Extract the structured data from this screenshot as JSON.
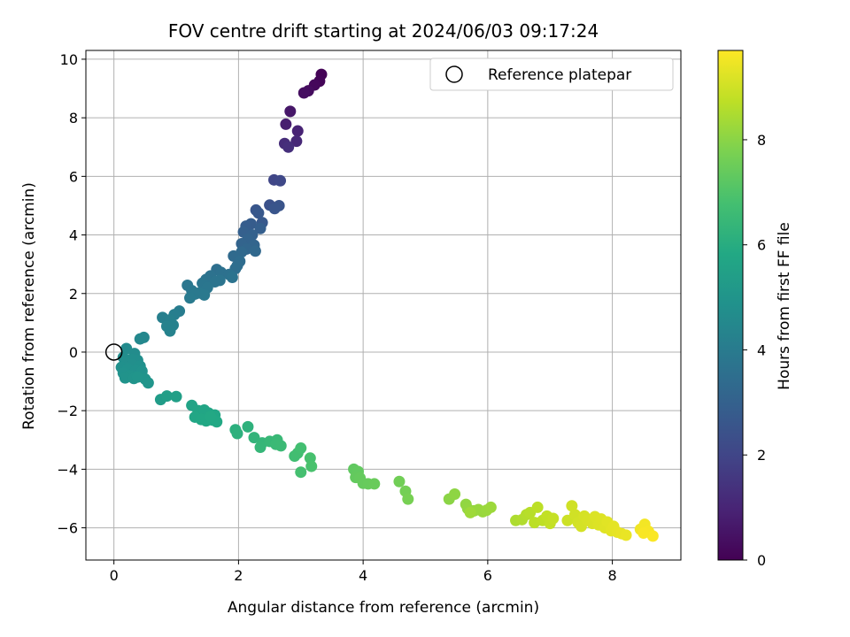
{
  "chart_data": {
    "type": "scatter",
    "title": "FOV centre drift starting at 2024/06/03 09:17:24",
    "xlabel": "Angular distance from reference (arcmin)",
    "ylabel": "Rotation from reference (arcmin)",
    "xlim": [
      -0.45,
      9.1
    ],
    "ylim": [
      -7.1,
      10.3
    ],
    "xticks": [
      0,
      2,
      4,
      6,
      8
    ],
    "yticks": [
      -6,
      -4,
      -2,
      0,
      2,
      4,
      6,
      8,
      10
    ],
    "grid": true,
    "legend": {
      "placement": "top-right",
      "entries": [
        {
          "label": "Reference platepar",
          "marker": "open-circle"
        }
      ]
    },
    "reference_point": {
      "x": 0,
      "y": 0
    },
    "colorbar": {
      "label": "Hours from first FF file",
      "range": [
        0,
        9.7
      ],
      "ticks": [
        0,
        2,
        4,
        6,
        8
      ],
      "colormap": "viridis"
    },
    "series": [
      {
        "values": [
          {
            "x": 3.33,
            "y": 9.48,
            "c": 0.05
          },
          {
            "x": 3.3,
            "y": 9.25,
            "c": 0.12
          },
          {
            "x": 3.22,
            "y": 9.12,
            "c": 0.2
          },
          {
            "x": 3.12,
            "y": 8.92,
            "c": 0.3
          },
          {
            "x": 3.05,
            "y": 8.85,
            "c": 0.35
          },
          {
            "x": 2.83,
            "y": 8.22,
            "c": 0.6
          },
          {
            "x": 2.76,
            "y": 7.78,
            "c": 0.8
          },
          {
            "x": 2.95,
            "y": 7.55,
            "c": 0.95
          },
          {
            "x": 2.93,
            "y": 7.2,
            "c": 1.1
          },
          {
            "x": 2.74,
            "y": 7.12,
            "c": 1.2
          },
          {
            "x": 2.8,
            "y": 7.0,
            "c": 1.3
          },
          {
            "x": 2.57,
            "y": 5.88,
            "c": 2.0
          },
          {
            "x": 2.67,
            "y": 5.85,
            "c": 2.1
          },
          {
            "x": 2.5,
            "y": 5.02,
            "c": 2.4
          },
          {
            "x": 2.65,
            "y": 5.0,
            "c": 2.5
          },
          {
            "x": 2.58,
            "y": 4.9,
            "c": 2.55
          },
          {
            "x": 2.28,
            "y": 4.85,
            "c": 2.6
          },
          {
            "x": 2.32,
            "y": 4.75,
            "c": 2.65
          },
          {
            "x": 2.38,
            "y": 4.42,
            "c": 2.7
          },
          {
            "x": 2.2,
            "y": 4.38,
            "c": 2.8
          },
          {
            "x": 2.12,
            "y": 4.3,
            "c": 2.85
          },
          {
            "x": 2.35,
            "y": 4.22,
            "c": 2.9
          },
          {
            "x": 2.08,
            "y": 4.1,
            "c": 2.95
          },
          {
            "x": 2.22,
            "y": 4.0,
            "c": 3.0
          },
          {
            "x": 2.15,
            "y": 3.85,
            "c": 3.05
          },
          {
            "x": 2.05,
            "y": 3.7,
            "c": 3.1
          },
          {
            "x": 2.25,
            "y": 3.65,
            "c": 3.15
          },
          {
            "x": 2.13,
            "y": 3.52,
            "c": 3.2
          },
          {
            "x": 2.27,
            "y": 3.45,
            "c": 3.25
          },
          {
            "x": 2.05,
            "y": 3.42,
            "c": 3.3
          },
          {
            "x": 1.92,
            "y": 3.28,
            "c": 3.35
          },
          {
            "x": 2.02,
            "y": 3.1,
            "c": 3.4
          },
          {
            "x": 1.98,
            "y": 2.95,
            "c": 3.45
          },
          {
            "x": 1.95,
            "y": 2.85,
            "c": 3.5
          },
          {
            "x": 1.65,
            "y": 2.82,
            "c": 3.55
          },
          {
            "x": 1.72,
            "y": 2.72,
            "c": 3.6
          },
          {
            "x": 1.85,
            "y": 2.65,
            "c": 3.62
          },
          {
            "x": 1.55,
            "y": 2.6,
            "c": 3.65
          },
          {
            "x": 1.9,
            "y": 2.55,
            "c": 3.68
          },
          {
            "x": 1.48,
            "y": 2.48,
            "c": 3.7
          },
          {
            "x": 1.7,
            "y": 2.45,
            "c": 3.72
          },
          {
            "x": 1.62,
            "y": 2.4,
            "c": 3.74
          },
          {
            "x": 1.42,
            "y": 2.35,
            "c": 3.76
          },
          {
            "x": 1.18,
            "y": 2.28,
            "c": 3.8
          },
          {
            "x": 1.5,
            "y": 2.2,
            "c": 3.82
          },
          {
            "x": 1.25,
            "y": 2.1,
            "c": 3.85
          },
          {
            "x": 1.37,
            "y": 2.02,
            "c": 3.88
          },
          {
            "x": 1.3,
            "y": 1.98,
            "c": 3.9
          },
          {
            "x": 1.45,
            "y": 1.95,
            "c": 3.92
          },
          {
            "x": 1.22,
            "y": 1.85,
            "c": 3.95
          },
          {
            "x": 1.05,
            "y": 1.4,
            "c": 4.05
          },
          {
            "x": 0.97,
            "y": 1.28,
            "c": 4.1
          },
          {
            "x": 0.78,
            "y": 1.18,
            "c": 4.15
          },
          {
            "x": 0.9,
            "y": 1.1,
            "c": 4.18
          },
          {
            "x": 0.95,
            "y": 0.92,
            "c": 4.22
          },
          {
            "x": 0.85,
            "y": 0.88,
            "c": 4.25
          },
          {
            "x": 0.9,
            "y": 0.72,
            "c": 4.28
          },
          {
            "x": 0.48,
            "y": 0.5,
            "c": 4.45
          },
          {
            "x": 0.42,
            "y": 0.45,
            "c": 4.5
          },
          {
            "x": 0.2,
            "y": 0.12,
            "c": 4.6
          },
          {
            "x": 0.33,
            "y": -0.05,
            "c": 4.65
          },
          {
            "x": 0.15,
            "y": -0.18,
            "c": 4.7
          },
          {
            "x": 0.28,
            "y": -0.25,
            "c": 4.72
          },
          {
            "x": 0.38,
            "y": -0.28,
            "c": 4.74
          },
          {
            "x": 0.18,
            "y": -0.35,
            "c": 4.76
          },
          {
            "x": 0.3,
            "y": -0.42,
            "c": 4.78
          },
          {
            "x": 0.42,
            "y": -0.48,
            "c": 4.8
          },
          {
            "x": 0.12,
            "y": -0.52,
            "c": 4.82
          },
          {
            "x": 0.22,
            "y": -0.58,
            "c": 4.84
          },
          {
            "x": 0.35,
            "y": -0.62,
            "c": 4.86
          },
          {
            "x": 0.45,
            "y": -0.65,
            "c": 4.88
          },
          {
            "x": 0.15,
            "y": -0.72,
            "c": 4.9
          },
          {
            "x": 0.25,
            "y": -0.8,
            "c": 4.92
          },
          {
            "x": 0.18,
            "y": -0.88,
            "c": 4.94
          },
          {
            "x": 0.32,
            "y": -0.9,
            "c": 4.96
          },
          {
            "x": 0.5,
            "y": -0.92,
            "c": 4.98
          },
          {
            "x": 0.55,
            "y": -1.05,
            "c": 5.0
          },
          {
            "x": 0.38,
            "y": -0.85,
            "c": 5.02
          },
          {
            "x": 0.75,
            "y": -1.62,
            "c": 5.3
          },
          {
            "x": 0.85,
            "y": -1.5,
            "c": 5.4
          },
          {
            "x": 1.0,
            "y": -1.52,
            "c": 5.45
          },
          {
            "x": 1.25,
            "y": -1.82,
            "c": 5.6
          },
          {
            "x": 1.35,
            "y": -2.0,
            "c": 5.65
          },
          {
            "x": 1.45,
            "y": -1.98,
            "c": 5.68
          },
          {
            "x": 1.52,
            "y": -2.08,
            "c": 5.7
          },
          {
            "x": 1.62,
            "y": -2.15,
            "c": 5.72
          },
          {
            "x": 1.3,
            "y": -2.22,
            "c": 5.74
          },
          {
            "x": 1.4,
            "y": -2.3,
            "c": 5.76
          },
          {
            "x": 1.48,
            "y": -2.35,
            "c": 5.78
          },
          {
            "x": 1.58,
            "y": -2.32,
            "c": 5.8
          },
          {
            "x": 1.65,
            "y": -2.38,
            "c": 5.82
          },
          {
            "x": 1.55,
            "y": -2.2,
            "c": 5.84
          },
          {
            "x": 1.95,
            "y": -2.65,
            "c": 6.1
          },
          {
            "x": 1.98,
            "y": -2.78,
            "c": 6.15
          },
          {
            "x": 2.15,
            "y": -2.55,
            "c": 6.2
          },
          {
            "x": 2.25,
            "y": -2.92,
            "c": 6.3
          },
          {
            "x": 2.38,
            "y": -3.1,
            "c": 6.35
          },
          {
            "x": 2.35,
            "y": -3.25,
            "c": 6.4
          },
          {
            "x": 2.5,
            "y": -3.05,
            "c": 6.45
          },
          {
            "x": 2.62,
            "y": -3.0,
            "c": 6.5
          },
          {
            "x": 2.6,
            "y": -3.15,
            "c": 6.52
          },
          {
            "x": 2.68,
            "y": -3.2,
            "c": 6.55
          },
          {
            "x": 2.9,
            "y": -3.55,
            "c": 6.7
          },
          {
            "x": 2.95,
            "y": -3.45,
            "c": 6.72
          },
          {
            "x": 3.0,
            "y": -3.28,
            "c": 6.75
          },
          {
            "x": 3.0,
            "y": -4.1,
            "c": 6.8
          },
          {
            "x": 3.15,
            "y": -3.62,
            "c": 6.85
          },
          {
            "x": 3.17,
            "y": -3.9,
            "c": 6.88
          },
          {
            "x": 3.85,
            "y": -4.0,
            "c": 7.3
          },
          {
            "x": 3.92,
            "y": -4.08,
            "c": 7.32
          },
          {
            "x": 3.88,
            "y": -4.28,
            "c": 7.35
          },
          {
            "x": 3.95,
            "y": -4.3,
            "c": 7.38
          },
          {
            "x": 4.0,
            "y": -4.48,
            "c": 7.4
          },
          {
            "x": 4.08,
            "y": -4.5,
            "c": 7.42
          },
          {
            "x": 4.18,
            "y": -4.5,
            "c": 7.45
          },
          {
            "x": 4.58,
            "y": -4.42,
            "c": 7.6
          },
          {
            "x": 4.68,
            "y": -4.75,
            "c": 7.65
          },
          {
            "x": 4.72,
            "y": -5.02,
            "c": 7.7
          },
          {
            "x": 5.38,
            "y": -5.02,
            "c": 8.0
          },
          {
            "x": 5.47,
            "y": -4.85,
            "c": 8.05
          },
          {
            "x": 5.65,
            "y": -5.2,
            "c": 8.1
          },
          {
            "x": 5.68,
            "y": -5.35,
            "c": 8.12
          },
          {
            "x": 5.78,
            "y": -5.42,
            "c": 8.15
          },
          {
            "x": 5.85,
            "y": -5.38,
            "c": 8.18
          },
          {
            "x": 5.92,
            "y": -5.45,
            "c": 8.2
          },
          {
            "x": 5.98,
            "y": -5.4,
            "c": 8.22
          },
          {
            "x": 6.05,
            "y": -5.3,
            "c": 8.25
          },
          {
            "x": 5.72,
            "y": -5.48,
            "c": 8.28
          },
          {
            "x": 6.45,
            "y": -5.75,
            "c": 8.5
          },
          {
            "x": 6.55,
            "y": -5.72,
            "c": 8.55
          },
          {
            "x": 6.62,
            "y": -5.55,
            "c": 8.6
          },
          {
            "x": 6.68,
            "y": -5.48,
            "c": 8.65
          },
          {
            "x": 6.75,
            "y": -5.82,
            "c": 8.7
          },
          {
            "x": 6.8,
            "y": -5.3,
            "c": 8.72
          },
          {
            "x": 6.88,
            "y": -5.75,
            "c": 8.75
          },
          {
            "x": 6.95,
            "y": -5.6,
            "c": 8.8
          },
          {
            "x": 7.0,
            "y": -5.85,
            "c": 8.82
          },
          {
            "x": 7.05,
            "y": -5.68,
            "c": 8.85
          },
          {
            "x": 7.28,
            "y": -5.75,
            "c": 8.95
          },
          {
            "x": 7.35,
            "y": -5.25,
            "c": 9.0
          },
          {
            "x": 7.4,
            "y": -5.55,
            "c": 9.02
          },
          {
            "x": 7.45,
            "y": -5.82,
            "c": 9.05
          },
          {
            "x": 7.5,
            "y": -5.95,
            "c": 9.08
          },
          {
            "x": 7.55,
            "y": -5.6,
            "c": 9.1
          },
          {
            "x": 7.6,
            "y": -5.75,
            "c": 9.12
          },
          {
            "x": 7.68,
            "y": -5.85,
            "c": 9.15
          },
          {
            "x": 7.72,
            "y": -5.62,
            "c": 9.18
          },
          {
            "x": 7.78,
            "y": -5.9,
            "c": 9.2
          },
          {
            "x": 7.82,
            "y": -5.7,
            "c": 9.22
          },
          {
            "x": 7.88,
            "y": -6.0,
            "c": 9.25
          },
          {
            "x": 7.92,
            "y": -5.8,
            "c": 9.28
          },
          {
            "x": 7.98,
            "y": -6.1,
            "c": 9.3
          },
          {
            "x": 8.02,
            "y": -5.95,
            "c": 9.32
          },
          {
            "x": 8.08,
            "y": -6.15,
            "c": 9.35
          },
          {
            "x": 8.15,
            "y": -6.2,
            "c": 9.38
          },
          {
            "x": 8.22,
            "y": -6.25,
            "c": 9.4
          },
          {
            "x": 8.45,
            "y": -6.05,
            "c": 9.5
          },
          {
            "x": 8.52,
            "y": -5.88,
            "c": 9.55
          },
          {
            "x": 8.58,
            "y": -6.12,
            "c": 9.6
          },
          {
            "x": 8.65,
            "y": -6.28,
            "c": 9.65
          },
          {
            "x": 8.5,
            "y": -6.18,
            "c": 9.62
          }
        ]
      }
    ]
  }
}
